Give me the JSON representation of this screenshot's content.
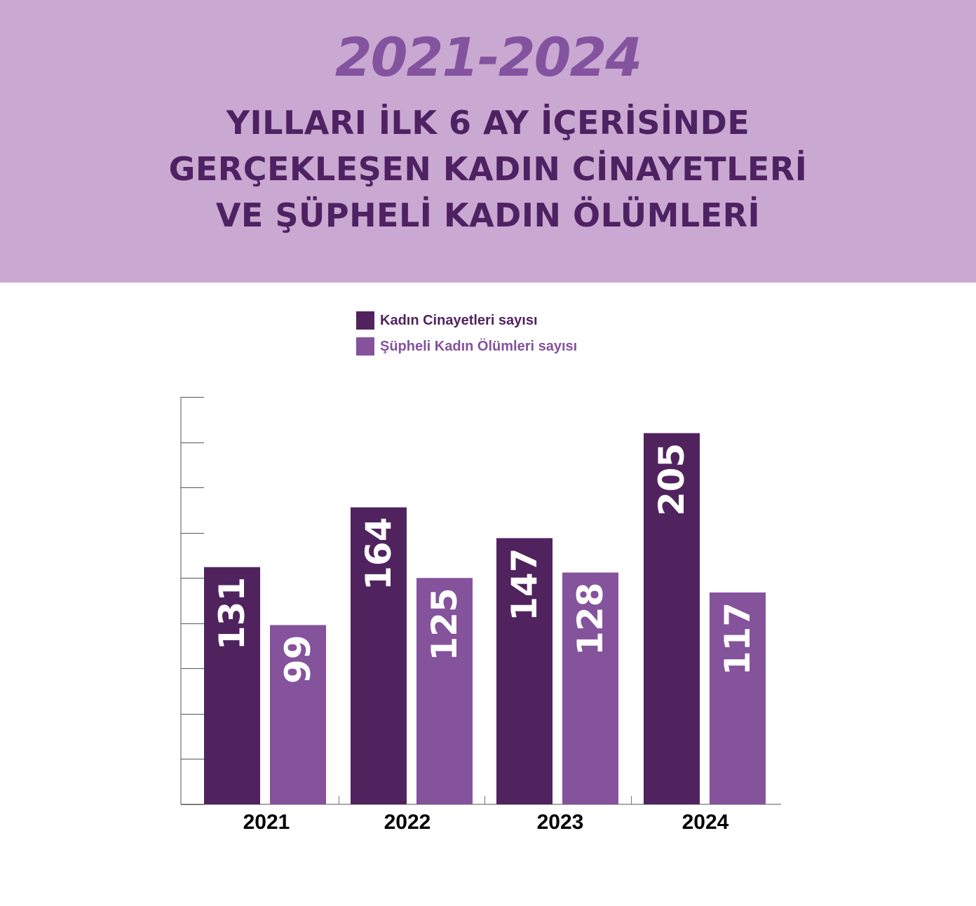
{
  "header": {
    "years": "2021-2024",
    "lines": [
      "YILLARI İLK 6 AY İÇERİSİNDE",
      "GERÇEKLEŞEN KADIN CİNAYETLERİ",
      "VE ŞÜPHELİ KADIN ÖLÜMLERİ"
    ],
    "background": "#c9a9d1"
  },
  "legend": [
    {
      "label": "Kadın Cinayetleri sayısı",
      "color": "#50235f"
    },
    {
      "label": "Şüpheli Kadın Ölümleri sayısı",
      "color": "#85529c"
    }
  ],
  "chart_data": {
    "type": "bar",
    "categories": [
      "2021",
      "2022",
      "2023",
      "2024"
    ],
    "series": [
      {
        "name": "Kadın Cinayetleri sayısı",
        "values": [
          131,
          164,
          147,
          205
        ],
        "color": "#50235f"
      },
      {
        "name": "Şüpheli Kadın Ölümleri sayısı",
        "values": [
          99,
          125,
          128,
          117
        ],
        "color": "#85529c"
      }
    ],
    "ylim": [
      0,
      225
    ],
    "y_ticks": [
      0,
      25,
      50,
      75,
      100,
      125,
      150,
      175,
      200,
      225
    ],
    "data_labels": "inside bars, rotated",
    "grid": false,
    "legend_position": "top"
  }
}
